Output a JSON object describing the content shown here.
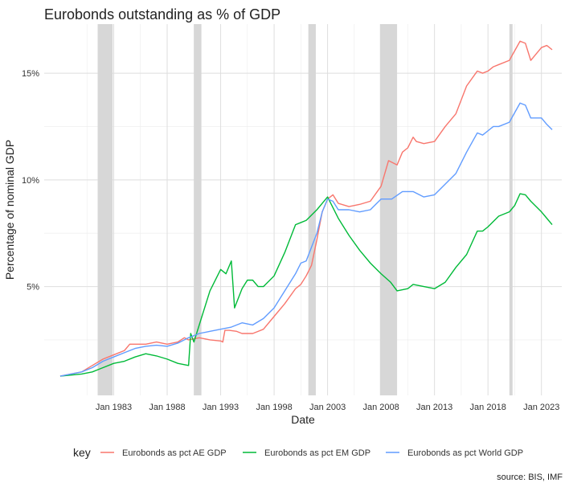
{
  "chart_data": {
    "type": "line",
    "title": "Eurobonds outstanding as % of GDP",
    "xlabel": "Date",
    "ylabel": "Percentage of nominal GDP",
    "source": "source: BIS, IMF",
    "legend_title": "key",
    "legend_position": "bottom",
    "grid": true,
    "x_ticks": [
      "Jan 1983",
      "Jan 1988",
      "Jan 1993",
      "Jan 1998",
      "Jan 2003",
      "Jan 2008",
      "Jan 2013",
      "Jan 2018",
      "Jan 2023"
    ],
    "x_tick_values": [
      1983,
      1988,
      1993,
      1998,
      2003,
      2008,
      2013,
      2018,
      2023
    ],
    "xlim": [
      1976.5,
      2024.9
    ],
    "y_ticks": [
      "5%",
      "10%",
      "15%"
    ],
    "y_tick_values": [
      5,
      10,
      15
    ],
    "ylim": [
      -0.1,
      17.3
    ],
    "recessions": [
      {
        "start": 1981.5,
        "end": 1982.9
      },
      {
        "start": 1990.5,
        "end": 1991.2
      },
      {
        "start": 2001.2,
        "end": 2001.9
      },
      {
        "start": 2007.9,
        "end": 2009.5
      },
      {
        "start": 2020.0,
        "end": 2020.3
      }
    ],
    "series": [
      {
        "name": "Eurobonds as pct AE GDP",
        "color": "#F8766D",
        "points": [
          [
            1978.0,
            0.8
          ],
          [
            1979.0,
            0.9
          ],
          [
            1980.0,
            1.0
          ],
          [
            1981.0,
            1.3
          ],
          [
            1982.0,
            1.6
          ],
          [
            1983.0,
            1.8
          ],
          [
            1984.0,
            2.0
          ],
          [
            1984.5,
            2.3
          ],
          [
            1985.0,
            2.3
          ],
          [
            1985.5,
            2.3
          ],
          [
            1986.0,
            2.3
          ],
          [
            1987.0,
            2.4
          ],
          [
            1988.0,
            2.3
          ],
          [
            1989.0,
            2.4
          ],
          [
            1989.6,
            2.6
          ],
          [
            1990.0,
            2.5
          ],
          [
            1991.0,
            2.6
          ],
          [
            1992.0,
            2.5
          ],
          [
            1993.0,
            2.45
          ],
          [
            1993.2,
            2.4
          ],
          [
            1993.4,
            2.95
          ],
          [
            1993.8,
            2.95
          ],
          [
            1994.5,
            2.9
          ],
          [
            1995.0,
            2.8
          ],
          [
            1996.0,
            2.8
          ],
          [
            1996.5,
            2.9
          ],
          [
            1997.0,
            3.0
          ],
          [
            1998.0,
            3.6
          ],
          [
            1999.0,
            4.2
          ],
          [
            2000.0,
            4.9
          ],
          [
            2000.5,
            5.1
          ],
          [
            2001.0,
            5.5
          ],
          [
            2001.5,
            6.0
          ],
          [
            2002.0,
            7.2
          ],
          [
            2002.5,
            8.5
          ],
          [
            2003.0,
            9.1
          ],
          [
            2003.5,
            9.3
          ],
          [
            2004.0,
            8.9
          ],
          [
            2005.0,
            8.75
          ],
          [
            2006.0,
            8.85
          ],
          [
            2007.0,
            9.0
          ],
          [
            2008.0,
            9.7
          ],
          [
            2008.7,
            10.9
          ],
          [
            2009.5,
            10.7
          ],
          [
            2010.0,
            11.3
          ],
          [
            2010.5,
            11.5
          ],
          [
            2011.0,
            12.0
          ],
          [
            2011.3,
            11.8
          ],
          [
            2012.0,
            11.7
          ],
          [
            2013.0,
            11.8
          ],
          [
            2014.0,
            12.5
          ],
          [
            2015.0,
            13.1
          ],
          [
            2016.0,
            14.4
          ],
          [
            2017.0,
            15.1
          ],
          [
            2017.5,
            15.0
          ],
          [
            2018.0,
            15.1
          ],
          [
            2018.5,
            15.3
          ],
          [
            2019.0,
            15.4
          ],
          [
            2020.0,
            15.6
          ],
          [
            2021.0,
            16.5
          ],
          [
            2021.5,
            16.4
          ],
          [
            2022.0,
            15.6
          ],
          [
            2023.0,
            16.2
          ],
          [
            2023.5,
            16.3
          ],
          [
            2024.0,
            16.1
          ]
        ]
      },
      {
        "name": "Eurobonds as pct EM GDP",
        "color": "#00BA38",
        "points": [
          [
            1978.0,
            0.8
          ],
          [
            1980.0,
            0.9
          ],
          [
            1981.0,
            1.0
          ],
          [
            1982.0,
            1.2
          ],
          [
            1983.0,
            1.4
          ],
          [
            1984.0,
            1.5
          ],
          [
            1985.0,
            1.7
          ],
          [
            1986.0,
            1.85
          ],
          [
            1987.0,
            1.75
          ],
          [
            1988.0,
            1.6
          ],
          [
            1989.0,
            1.4
          ],
          [
            1990.0,
            1.3
          ],
          [
            1990.2,
            2.8
          ],
          [
            1990.5,
            2.4
          ],
          [
            1991.0,
            3.2
          ],
          [
            1992.0,
            4.8
          ],
          [
            1993.0,
            5.8
          ],
          [
            1993.5,
            5.6
          ],
          [
            1994.0,
            6.2
          ],
          [
            1994.3,
            4.0
          ],
          [
            1995.0,
            4.9
          ],
          [
            1995.5,
            5.3
          ],
          [
            1996.0,
            5.3
          ],
          [
            1996.5,
            5.0
          ],
          [
            1997.0,
            5.0
          ],
          [
            1998.0,
            5.5
          ],
          [
            1999.0,
            6.6
          ],
          [
            2000.0,
            7.9
          ],
          [
            2000.5,
            8.0
          ],
          [
            2001.0,
            8.1
          ],
          [
            2002.0,
            8.6
          ],
          [
            2003.0,
            9.2
          ],
          [
            2004.0,
            8.2
          ],
          [
            2005.0,
            7.4
          ],
          [
            2006.0,
            6.7
          ],
          [
            2007.0,
            6.1
          ],
          [
            2008.0,
            5.6
          ],
          [
            2008.9,
            5.2
          ],
          [
            2009.5,
            4.8
          ],
          [
            2010.5,
            4.9
          ],
          [
            2011.0,
            5.1
          ],
          [
            2012.0,
            5.0
          ],
          [
            2013.0,
            4.9
          ],
          [
            2014.0,
            5.2
          ],
          [
            2015.0,
            5.9
          ],
          [
            2016.0,
            6.5
          ],
          [
            2017.0,
            7.6
          ],
          [
            2017.5,
            7.6
          ],
          [
            2018.0,
            7.8
          ],
          [
            2019.0,
            8.3
          ],
          [
            2020.0,
            8.5
          ],
          [
            2020.5,
            8.8
          ],
          [
            2021.0,
            9.35
          ],
          [
            2021.5,
            9.3
          ],
          [
            2022.0,
            9.0
          ],
          [
            2023.0,
            8.5
          ],
          [
            2023.5,
            8.2
          ],
          [
            2024.0,
            7.9
          ]
        ]
      },
      {
        "name": "Eurobonds as pct World GDP",
        "color": "#619CFF",
        "points": [
          [
            1978.0,
            0.8
          ],
          [
            1979.0,
            0.9
          ],
          [
            1980.0,
            1.0
          ],
          [
            1981.0,
            1.2
          ],
          [
            1982.0,
            1.5
          ],
          [
            1983.0,
            1.7
          ],
          [
            1984.0,
            1.9
          ],
          [
            1985.0,
            2.1
          ],
          [
            1986.0,
            2.2
          ],
          [
            1987.0,
            2.25
          ],
          [
            1988.0,
            2.2
          ],
          [
            1989.0,
            2.35
          ],
          [
            1990.0,
            2.6
          ],
          [
            1991.0,
            2.8
          ],
          [
            1992.0,
            2.9
          ],
          [
            1993.0,
            3.0
          ],
          [
            1994.0,
            3.1
          ],
          [
            1995.0,
            3.3
          ],
          [
            1996.0,
            3.2
          ],
          [
            1997.0,
            3.5
          ],
          [
            1998.0,
            4.0
          ],
          [
            1999.0,
            4.8
          ],
          [
            2000.0,
            5.6
          ],
          [
            2000.5,
            6.1
          ],
          [
            2001.0,
            6.2
          ],
          [
            2002.0,
            7.5
          ],
          [
            2002.5,
            8.5
          ],
          [
            2003.0,
            9.1
          ],
          [
            2003.5,
            9.0
          ],
          [
            2004.0,
            8.6
          ],
          [
            2005.0,
            8.6
          ],
          [
            2006.0,
            8.5
          ],
          [
            2007.0,
            8.6
          ],
          [
            2008.0,
            9.1
          ],
          [
            2009.0,
            9.1
          ],
          [
            2010.0,
            9.45
          ],
          [
            2011.0,
            9.45
          ],
          [
            2012.0,
            9.2
          ],
          [
            2013.0,
            9.3
          ],
          [
            2014.0,
            9.8
          ],
          [
            2015.0,
            10.3
          ],
          [
            2016.0,
            11.3
          ],
          [
            2017.0,
            12.2
          ],
          [
            2017.5,
            12.1
          ],
          [
            2018.0,
            12.3
          ],
          [
            2018.5,
            12.5
          ],
          [
            2019.0,
            12.5
          ],
          [
            2020.0,
            12.7
          ],
          [
            2021.0,
            13.6
          ],
          [
            2021.5,
            13.5
          ],
          [
            2022.0,
            12.9
          ],
          [
            2023.0,
            12.9
          ],
          [
            2023.5,
            12.6
          ],
          [
            2024.0,
            12.35
          ]
        ]
      }
    ]
  }
}
